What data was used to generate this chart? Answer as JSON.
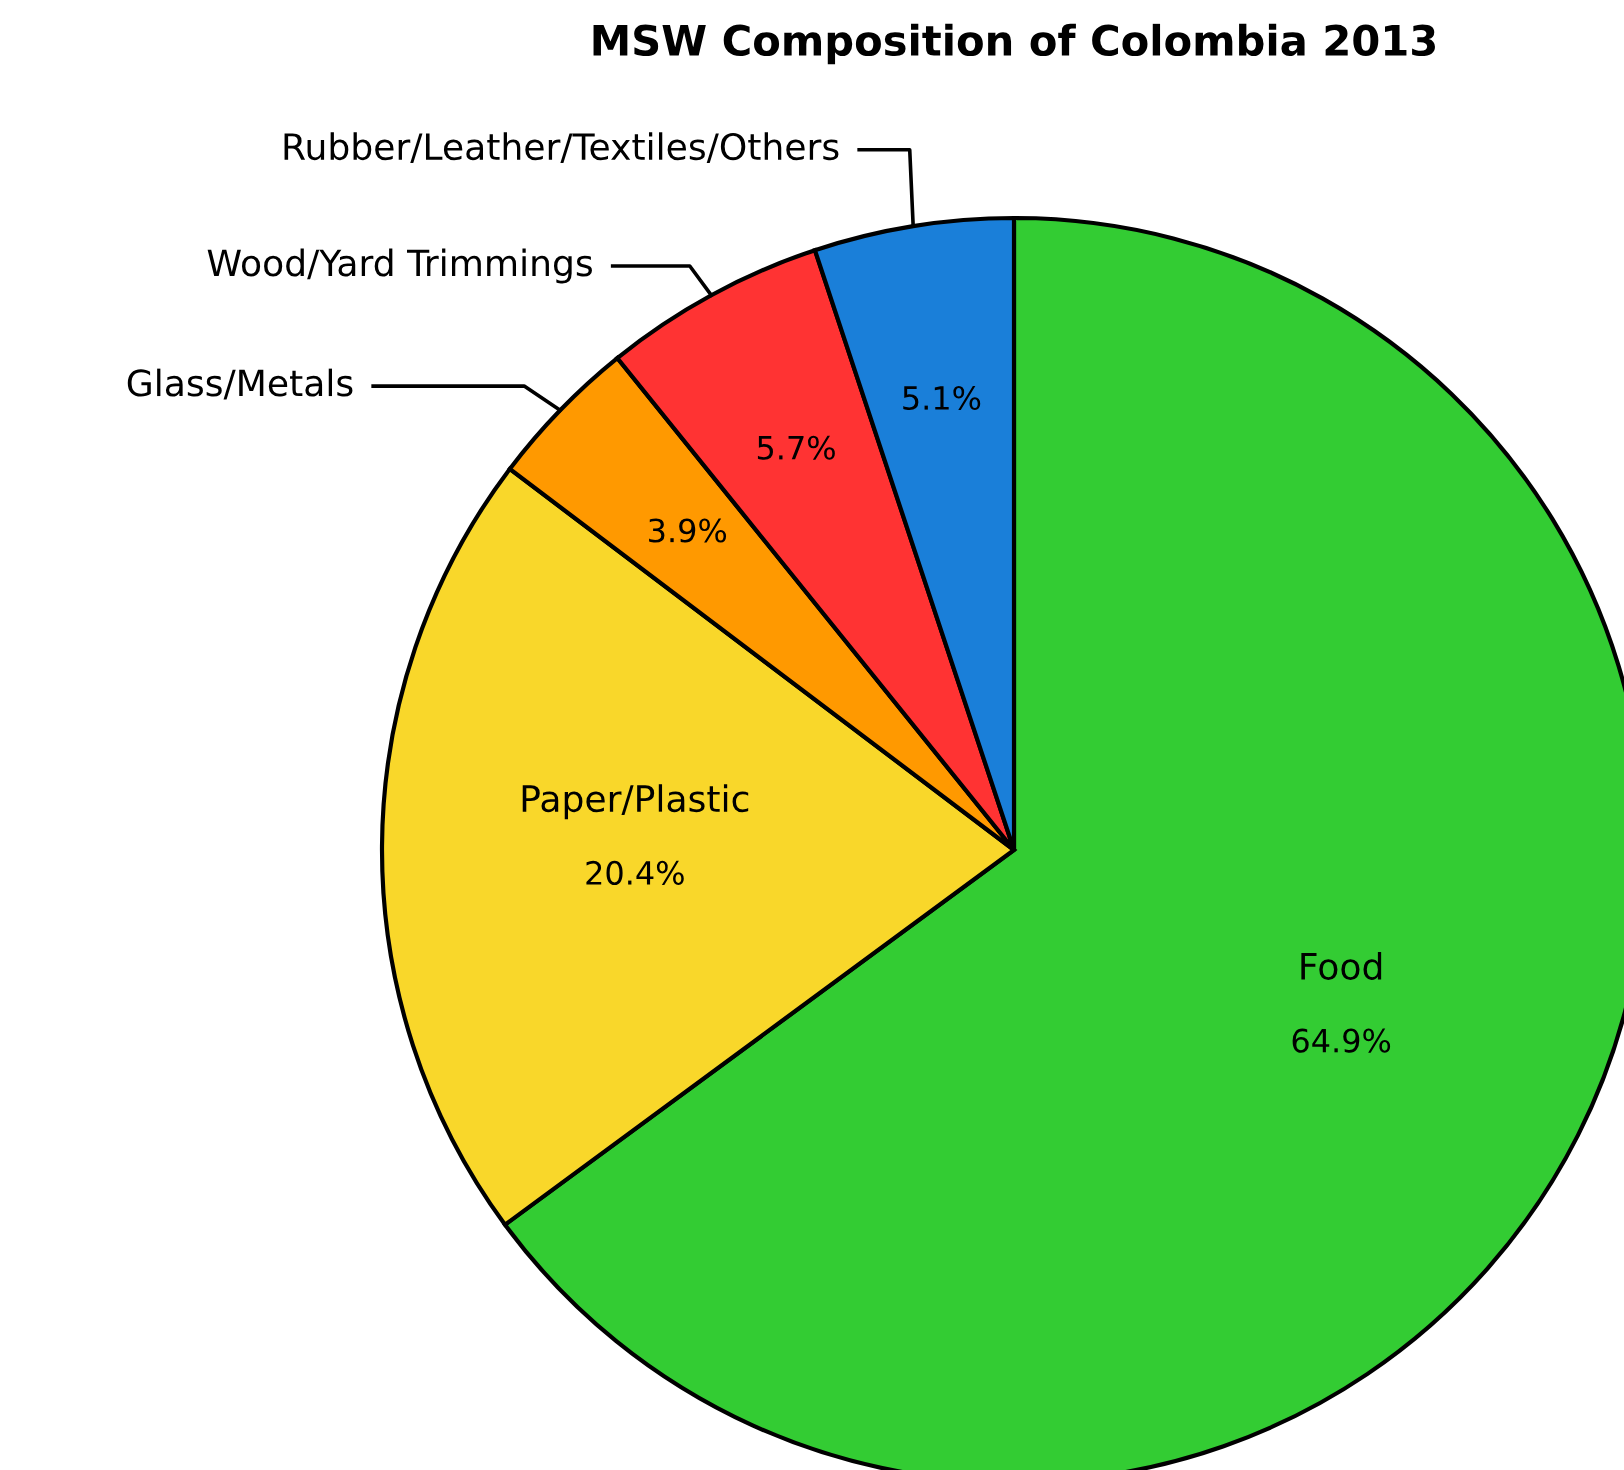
{
  "chart_data": {
    "type": "pie",
    "title": "MSW Composition of Colombia 2013",
    "categories": [
      "Food",
      "Paper/Plastic",
      "Glass/Metals",
      "Wood/Yard Trimmings",
      "Rubber/Leather/Textiles/Others"
    ],
    "values": [
      64.9,
      20.4,
      3.9,
      5.7,
      5.1
    ],
    "colors": [
      "#33cc33",
      "#f9d72a",
      "#ff9900",
      "#ff3333",
      "#1a7fd9"
    ],
    "value_labels": [
      "64.9%",
      "20.4%",
      "3.9%",
      "5.7%",
      "5.1%"
    ]
  }
}
